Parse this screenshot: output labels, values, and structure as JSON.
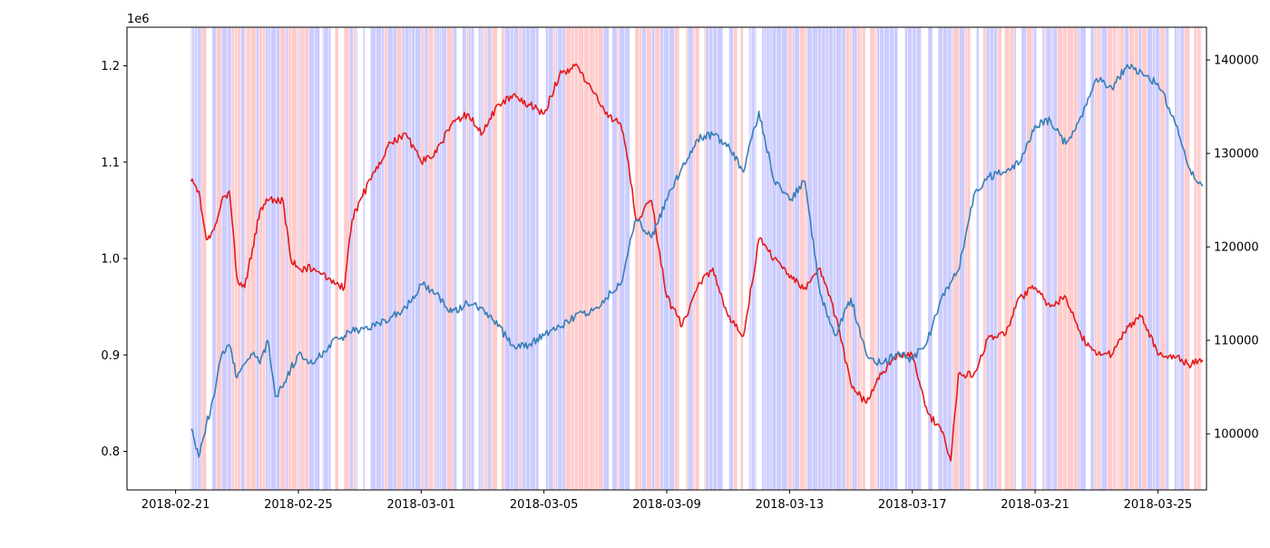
{
  "chart_data": {
    "type": "line",
    "title": "",
    "xlabel": "",
    "ylabel": "",
    "y_offset_text": "1e6",
    "x_ticks": [
      "2018-02-21",
      "2018-02-25",
      "2018-03-01",
      "2018-03-05",
      "2018-03-09",
      "2018-03-13",
      "2018-03-17",
      "2018-03-21",
      "2018-03-25"
    ],
    "xlim": [
      "2018-02-19 10:00",
      "2018-03-26 14:00"
    ],
    "ylim_left": [
      0.76,
      1.24
    ],
    "ylim_right": [
      94000,
      143500
    ],
    "y_ticks_left": [
      "0.8",
      "0.9",
      "1.0",
      "1.1",
      "1.2"
    ],
    "y_ticks_right": [
      "100000",
      "110000",
      "120000",
      "130000",
      "140000"
    ],
    "grid": false,
    "legend": "none",
    "background_bands": {
      "colors": {
        "pink": "#ffcccc",
        "blue": "#ccccff"
      },
      "x_range": [
        "2018-02-21 12:00",
        "2018-03-26 11:00"
      ]
    },
    "series": [
      {
        "axis": "left",
        "color": "#e41a1c",
        "x": [
          "2018-02-21 12:00",
          "2018-02-21 18:00",
          "2018-02-22 00:00",
          "2018-02-22 06:00",
          "2018-02-22 12:00",
          "2018-02-22 18:00",
          "2018-02-23 00:00",
          "2018-02-23 06:00",
          "2018-02-23 12:00",
          "2018-02-23 18:00",
          "2018-02-24 00:00",
          "2018-02-24 06:00",
          "2018-02-24 12:00",
          "2018-02-24 18:00",
          "2018-02-25 00:00",
          "2018-02-25 12:00",
          "2018-02-26 00:00",
          "2018-02-26 12:00",
          "2018-02-26 18:00",
          "2018-02-27 00:00",
          "2018-02-27 12:00",
          "2018-02-28 00:00",
          "2018-02-28 12:00",
          "2018-03-01 00:00",
          "2018-03-01 12:00",
          "2018-03-02 00:00",
          "2018-03-02 12:00",
          "2018-03-03 00:00",
          "2018-03-03 12:00",
          "2018-03-04 00:00",
          "2018-03-04 12:00",
          "2018-03-05 00:00",
          "2018-03-05 12:00",
          "2018-03-06 00:00",
          "2018-03-06 12:00",
          "2018-03-07 00:00",
          "2018-03-07 12:00",
          "2018-03-07 18:00",
          "2018-03-08 00:00",
          "2018-03-08 12:00",
          "2018-03-09 00:00",
          "2018-03-09 12:00",
          "2018-03-10 00:00",
          "2018-03-10 12:00",
          "2018-03-11 00:00",
          "2018-03-11 12:00",
          "2018-03-12 00:00",
          "2018-03-12 12:00",
          "2018-03-13 00:00",
          "2018-03-13 12:00",
          "2018-03-14 00:00",
          "2018-03-14 12:00",
          "2018-03-15 00:00",
          "2018-03-15 12:00",
          "2018-03-16 00:00",
          "2018-03-16 12:00",
          "2018-03-17 00:00",
          "2018-03-17 12:00",
          "2018-03-18 00:00",
          "2018-03-18 06:00",
          "2018-03-18 12:00",
          "2018-03-19 00:00",
          "2018-03-19 12:00",
          "2018-03-20 00:00",
          "2018-03-20 12:00",
          "2018-03-21 00:00",
          "2018-03-21 12:00",
          "2018-03-22 00:00",
          "2018-03-22 12:00",
          "2018-03-23 00:00",
          "2018-03-23 12:00",
          "2018-03-24 00:00",
          "2018-03-24 12:00",
          "2018-03-25 00:00",
          "2018-03-25 12:00",
          "2018-03-26 00:00",
          "2018-03-26 11:00"
        ],
        "y": [
          1.08,
          1.07,
          1.02,
          1.03,
          1.06,
          1.07,
          0.98,
          0.97,
          1.01,
          1.05,
          1.06,
          1.06,
          1.06,
          1.0,
          0.99,
          0.99,
          0.98,
          0.97,
          1.04,
          1.06,
          1.09,
          1.12,
          1.13,
          1.1,
          1.11,
          1.14,
          1.15,
          1.13,
          1.16,
          1.17,
          1.16,
          1.15,
          1.19,
          1.2,
          1.18,
          1.15,
          1.14,
          1.1,
          1.04,
          1.06,
          0.96,
          0.93,
          0.97,
          0.99,
          0.94,
          0.92,
          1.02,
          1.0,
          0.98,
          0.97,
          0.99,
          0.94,
          0.87,
          0.85,
          0.88,
          0.9,
          0.9,
          0.84,
          0.82,
          0.79,
          0.88,
          0.88,
          0.92,
          0.92,
          0.96,
          0.97,
          0.95,
          0.96,
          0.92,
          0.9,
          0.9,
          0.93,
          0.94,
          0.9,
          0.9,
          0.89,
          0.895
        ]
      },
      {
        "axis": "right",
        "color": "#377eb8",
        "x": [
          "2018-02-21 12:00",
          "2018-02-21 18:00",
          "2018-02-22 00:00",
          "2018-02-22 06:00",
          "2018-02-22 12:00",
          "2018-02-22 18:00",
          "2018-02-23 00:00",
          "2018-02-23 06:00",
          "2018-02-23 12:00",
          "2018-02-23 18:00",
          "2018-02-24 00:00",
          "2018-02-24 06:00",
          "2018-02-24 12:00",
          "2018-02-24 18:00",
          "2018-02-25 00:00",
          "2018-02-25 12:00",
          "2018-02-26 00:00",
          "2018-02-26 12:00",
          "2018-02-26 18:00",
          "2018-02-27 00:00",
          "2018-02-27 12:00",
          "2018-02-28 00:00",
          "2018-02-28 12:00",
          "2018-03-01 00:00",
          "2018-03-01 12:00",
          "2018-03-02 00:00",
          "2018-03-02 12:00",
          "2018-03-03 00:00",
          "2018-03-03 12:00",
          "2018-03-04 00:00",
          "2018-03-04 12:00",
          "2018-03-05 00:00",
          "2018-03-05 12:00",
          "2018-03-06 00:00",
          "2018-03-06 12:00",
          "2018-03-07 00:00",
          "2018-03-07 12:00",
          "2018-03-08 00:00",
          "2018-03-08 12:00",
          "2018-03-09 00:00",
          "2018-03-09 12:00",
          "2018-03-10 00:00",
          "2018-03-10 12:00",
          "2018-03-11 00:00",
          "2018-03-11 12:00",
          "2018-03-12 00:00",
          "2018-03-12 12:00",
          "2018-03-13 00:00",
          "2018-03-13 12:00",
          "2018-03-14 00:00",
          "2018-03-14 12:00",
          "2018-03-15 00:00",
          "2018-03-15 12:00",
          "2018-03-16 00:00",
          "2018-03-16 12:00",
          "2018-03-17 00:00",
          "2018-03-17 12:00",
          "2018-03-18 00:00",
          "2018-03-18 12:00",
          "2018-03-19 00:00",
          "2018-03-19 12:00",
          "2018-03-20 00:00",
          "2018-03-20 12:00",
          "2018-03-21 00:00",
          "2018-03-21 12:00",
          "2018-03-22 00:00",
          "2018-03-22 12:00",
          "2018-03-23 00:00",
          "2018-03-23 12:00",
          "2018-03-24 00:00",
          "2018-03-24 12:00",
          "2018-03-25 00:00",
          "2018-03-25 12:00",
          "2018-03-26 00:00",
          "2018-03-26 11:00"
        ],
        "y": [
          100500,
          97500,
          101000,
          104000,
          108500,
          109500,
          106000,
          107500,
          108500,
          107500,
          110000,
          104000,
          105000,
          107000,
          108500,
          107500,
          109500,
          110500,
          111000,
          111000,
          111500,
          112500,
          113500,
          116000,
          115000,
          113000,
          114000,
          113500,
          111500,
          109500,
          109500,
          110500,
          111500,
          112500,
          113000,
          114500,
          116000,
          123000,
          121000,
          125000,
          128500,
          131500,
          132000,
          131000,
          128000,
          134500,
          127000,
          125000,
          127000,
          115000,
          110500,
          114500,
          108500,
          107500,
          108500,
          108000,
          110000,
          115000,
          117500,
          125500,
          127500,
          128000,
          129000,
          133000,
          133500,
          131000,
          134000,
          138000,
          137000,
          139500,
          138500,
          137500,
          134000,
          128500,
          126500
        ]
      }
    ]
  }
}
